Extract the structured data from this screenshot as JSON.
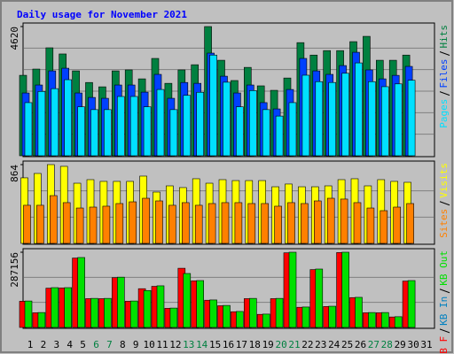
{
  "chart_data": {
    "type": "bar",
    "title": "Daily usage for November 2021",
    "title_color": "#0000ff",
    "categories": [
      "1",
      "2",
      "3",
      "4",
      "5",
      "6",
      "7",
      "8",
      "9",
      "10",
      "11",
      "12",
      "13",
      "14",
      "15",
      "16",
      "17",
      "18",
      "19",
      "20",
      "21",
      "22",
      "23",
      "24",
      "25",
      "26",
      "27",
      "28",
      "29",
      "30",
      "31"
    ],
    "category_colors": [
      "#000000",
      "#000000",
      "#000000",
      "#000000",
      "#000000",
      "#008040",
      "#008040",
      "#000000",
      "#000000",
      "#000000",
      "#000000",
      "#000000",
      "#008040",
      "#008040",
      "#000000",
      "#000000",
      "#000000",
      "#000000",
      "#000000",
      "#008040",
      "#008040",
      "#000000",
      "#000000",
      "#000000",
      "#000000",
      "#000000",
      "#008040",
      "#008040",
      "#000000",
      "#000000",
      "#000000"
    ],
    "panels": [
      {
        "ylim": [
          0,
          4620
        ],
        "yticks": [
          4620
        ],
        "grid": true,
        "legend_reverse": false,
        "series": [
          {
            "name": "Hits",
            "color": "#008040",
            "values": [
              2877,
              3100,
              3860,
              3640,
              3035,
              2620,
              2465,
              3035,
              3070,
              2750,
              3480,
              2590,
              3070,
              3255,
              4620,
              3415,
              2690,
              3160,
              2500,
              2340,
              2780,
              4045,
              3600,
              3760,
              3760,
              4080,
              4270,
              3415,
              3415,
              3600,
              null
            ]
          },
          {
            "name": "Files",
            "color": "#0040ff",
            "values": [
              2245,
              2530,
              3035,
              3130,
              2245,
              2085,
              2055,
              2530,
              2530,
              2275,
              2910,
              2055,
              2620,
              2590,
              3670,
              2845,
              2245,
              2530,
              1900,
              1675,
              2370,
              3480,
              3035,
              2910,
              3225,
              3700,
              3070,
              2750,
              2875,
              3195,
              null
            ]
          },
          {
            "name": "Pages",
            "color": "#00e0ff",
            "values": [
              1900,
              2300,
              2400,
              2720,
              1750,
              1650,
              1650,
              2120,
              2120,
              1750,
              2370,
              1650,
              2160,
              2270,
              3600,
              2630,
              1750,
              2330,
              1650,
              1420,
              1900,
              2880,
              2650,
              2620,
              2950,
              3320,
              2650,
              2470,
              2570,
              2700,
              null
            ]
          }
        ]
      },
      {
        "ylim": [
          0,
          864
        ],
        "yticks": [
          864
        ],
        "grid": true,
        "legend_reverse": false,
        "series": [
          {
            "name": "Visits",
            "color": "#ffff00",
            "values": [
              719,
              767,
              864,
              845,
              660,
              699,
              680,
              680,
              680,
              738,
              563,
              631,
              612,
              709,
              660,
              699,
              689,
              689,
              689,
              621,
              651,
              621,
              621,
              631,
              699,
              709,
              631,
              699,
              680,
              670,
              null
            ]
          },
          {
            "name": "Sites",
            "color": "#ff8000",
            "values": [
              418,
              418,
              524,
              447,
              388,
              398,
              408,
              437,
              456,
              495,
              466,
              418,
              447,
              418,
              437,
              447,
              447,
              437,
              437,
              408,
              447,
              437,
              466,
              495,
              486,
              447,
              388,
              359,
              398,
              437,
              null
            ]
          }
        ]
      },
      {
        "ylim": [
          0,
          287156
        ],
        "yticks": [
          287156
        ],
        "grid": true,
        "legend_reverse": true,
        "series": [
          {
            "name": "KB F",
            "color": "#ff0000",
            "values": [
              100000,
              56000,
              150000,
              151000,
              265000,
              110000,
              110000,
              190000,
              100000,
              148000,
              157000,
              73000,
              226000,
              178000,
              104000,
              83000,
              60000,
              110000,
              50000,
              110000,
              285000,
              77000,
              221000,
              80000,
              286000,
              114000,
              56000,
              56000,
              40000,
              177000,
              null
            ]
          },
          {
            "name": "KB In",
            "color": "#0080c0",
            "values": [
              0,
              0,
              0,
              0,
              0,
              0,
              0,
              0,
              0,
              0,
              0,
              0,
              0,
              0,
              0,
              0,
              0,
              0,
              0,
              0,
              0,
              0,
              0,
              0,
              0,
              0,
              0,
              0,
              0,
              0,
              null
            ]
          },
          {
            "name": "KB Out",
            "color": "#00e000",
            "values": [
              101000,
              57000,
              152000,
              152000,
              267000,
              111000,
              111000,
              192000,
              101000,
              141000,
              159000,
              74000,
              206000,
              179000,
              105000,
              84000,
              61000,
              111000,
              51000,
              111000,
              287156,
              78000,
              223000,
              81000,
              287156,
              115000,
              57000,
              57000,
              41000,
              179000,
              null
            ]
          }
        ]
      }
    ]
  }
}
